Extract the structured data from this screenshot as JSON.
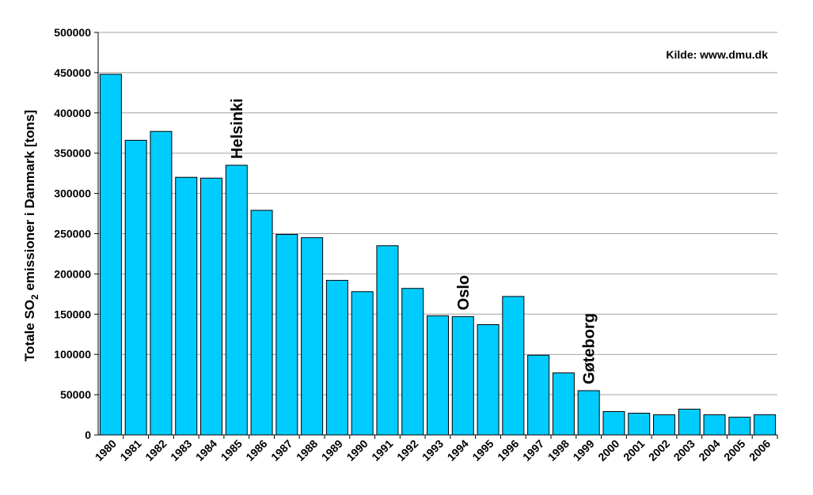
{
  "chart_data": {
    "type": "bar",
    "categories": [
      "1980",
      "1981",
      "1982",
      "1983",
      "1984",
      "1985",
      "1986",
      "1987",
      "1988",
      "1989",
      "1990",
      "1991",
      "1992",
      "1993",
      "1994",
      "1995",
      "1996",
      "1997",
      "1998",
      "1999",
      "2000",
      "2001",
      "2002",
      "2003",
      "2004",
      "2005",
      "2006"
    ],
    "values": [
      448000,
      366000,
      377000,
      320000,
      319000,
      335000,
      279000,
      249000,
      245000,
      192000,
      178000,
      235000,
      182000,
      148000,
      147000,
      137000,
      172000,
      99000,
      77000,
      55000,
      29000,
      27000,
      25000,
      32000,
      25000,
      22000,
      25000
    ],
    "ylabel": {
      "prefix": "Totale SO",
      "sub": "2",
      "suffix": " emissioner i Danmark [tons]"
    },
    "ylim": [
      0,
      500000
    ],
    "yticks": [
      0,
      50000,
      100000,
      150000,
      200000,
      250000,
      300000,
      350000,
      400000,
      450000,
      500000
    ],
    "grid": true,
    "source_note": "Kilde: www.dmu.dk",
    "annotations": [
      {
        "text": "Helsinki",
        "category": "1985"
      },
      {
        "text": "Oslo",
        "category": "1994"
      },
      {
        "text": "Gøteborg",
        "category": "1999"
      }
    ],
    "colors": {
      "bar": "#00ccff",
      "bar_stroke": "#000000",
      "grid": "#a0a0a0"
    }
  }
}
